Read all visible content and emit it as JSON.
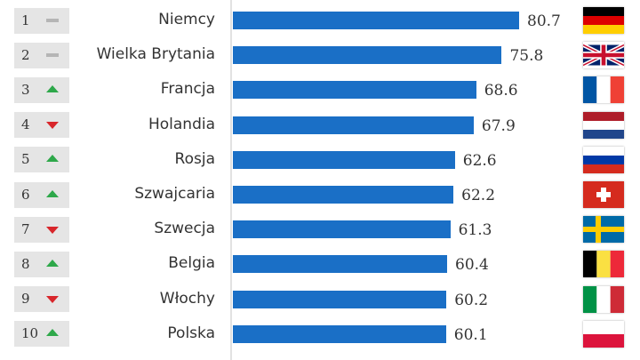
{
  "chart_data": {
    "type": "bar",
    "orientation": "horizontal",
    "xlim": [
      0,
      80.7
    ],
    "bar_color": "#1a6fc6",
    "categories": [
      "Niemcy",
      "Wielka Brytania",
      "Francja",
      "Holandia",
      "Rosja",
      "Szwajcaria",
      "Szwecja",
      "Belgia",
      "Włochy",
      "Polska"
    ],
    "values": [
      80.7,
      75.8,
      68.6,
      67.9,
      62.6,
      62.2,
      61.3,
      60.4,
      60.2,
      60.1
    ],
    "value_labels": [
      "80.7",
      "75.8",
      "68.6",
      "67.9",
      "62.6",
      "62.2",
      "61.3",
      "60.4",
      "60.2",
      "60.1"
    ],
    "ranks": [
      "1",
      "2",
      "3",
      "4",
      "5",
      "6",
      "7",
      "8",
      "9",
      "10"
    ],
    "rank_changes": [
      "same",
      "same",
      "up",
      "down",
      "up",
      "up",
      "down",
      "up",
      "down",
      "up"
    ],
    "flags": [
      "germany-flag",
      "uk-flag",
      "france-flag",
      "netherlands-flag",
      "russia-flag",
      "switzerland-flag",
      "sweden-flag",
      "belgium-flag",
      "italy-flag",
      "poland-flag"
    ]
  },
  "colors": {
    "up": "#2ea84a",
    "down": "#d8262b",
    "same": "#b5b5b5",
    "rank_box": "#e5e5e5"
  }
}
